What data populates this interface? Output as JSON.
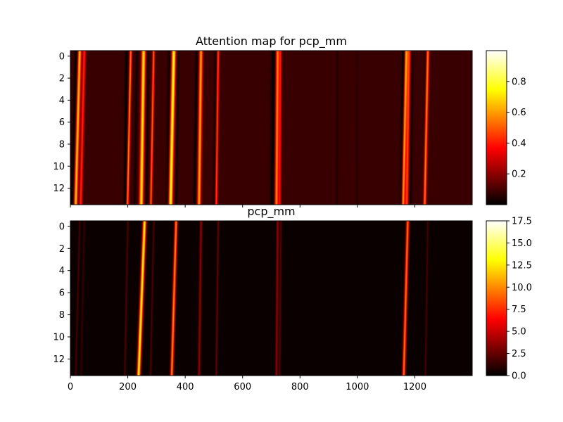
{
  "chart_data": [
    {
      "type": "heatmap",
      "title": "Attention map for pcp_mm",
      "colormap": "hot",
      "x_range": [
        0,
        1400
      ],
      "y_range": [
        -0.5,
        13.5
      ],
      "y_inverted": true,
      "y_ticks": [
        0,
        2,
        4,
        6,
        8,
        10,
        12
      ],
      "x_ticks": [
        0,
        200,
        400,
        600,
        800,
        1000,
        1200
      ],
      "x_tick_labels_visible": false,
      "background_value": 0.08,
      "colorbar": {
        "range": [
          0.0,
          1.0
        ],
        "ticks": [
          0.2,
          0.4,
          0.6,
          0.8
        ]
      },
      "features": [
        {
          "x": 22,
          "slope": 1.2,
          "width": 8,
          "value": -0.08
        },
        {
          "x": 32,
          "slope": 1.0,
          "width": 6,
          "value": 0.6
        },
        {
          "x": 48,
          "slope": 0.9,
          "width": 5,
          "value": 0.35
        },
        {
          "x": 195,
          "slope": 0.4,
          "width": 5,
          "value": -0.08
        },
        {
          "x": 210,
          "slope": 0.8,
          "width": 4,
          "value": 0.5
        },
        {
          "x": 232,
          "slope": 0.6,
          "width": 4,
          "value": -0.06
        },
        {
          "x": 255,
          "slope": 0.6,
          "width": 7,
          "value": 0.65
        },
        {
          "x": 270,
          "slope": 0.4,
          "width": 5,
          "value": -0.06
        },
        {
          "x": 290,
          "slope": 0.7,
          "width": 4,
          "value": 0.45
        },
        {
          "x": 345,
          "slope": 0.5,
          "width": 5,
          "value": -0.07
        },
        {
          "x": 360,
          "slope": 0.8,
          "width": 7,
          "value": 0.7
        },
        {
          "x": 376,
          "slope": 0.5,
          "width": 4,
          "value": -0.06
        },
        {
          "x": 440,
          "slope": 0.6,
          "width": 5,
          "value": -0.07
        },
        {
          "x": 455,
          "slope": 0.5,
          "width": 6,
          "value": 0.55
        },
        {
          "x": 505,
          "slope": 0.3,
          "width": 4,
          "value": -0.06
        },
        {
          "x": 515,
          "slope": 0.5,
          "width": 4,
          "value": 0.4
        },
        {
          "x": 708,
          "slope": 0.3,
          "width": 8,
          "value": -0.08
        },
        {
          "x": 722,
          "slope": 0.3,
          "width": 6,
          "value": 0.5
        },
        {
          "x": 732,
          "slope": 0.2,
          "width": 4,
          "value": 0.3
        },
        {
          "x": 930,
          "slope": 0.1,
          "width": 3,
          "value": -0.04
        },
        {
          "x": 1000,
          "slope": 0.1,
          "width": 3,
          "value": -0.03
        },
        {
          "x": 1160,
          "slope": 0.5,
          "width": 6,
          "value": -0.08
        },
        {
          "x": 1170,
          "slope": 0.8,
          "width": 5,
          "value": 0.55
        },
        {
          "x": 1180,
          "slope": 0.6,
          "width": 6,
          "value": 0.4
        },
        {
          "x": 1188,
          "slope": 0.4,
          "width": 6,
          "value": -0.07
        },
        {
          "x": 1245,
          "slope": 0.8,
          "width": 5,
          "value": 0.5
        },
        {
          "x": 1238,
          "slope": 0.6,
          "width": 4,
          "value": -0.06
        }
      ]
    },
    {
      "type": "heatmap",
      "title": "pcp_mm",
      "colormap": "hot",
      "x_range": [
        0,
        1400
      ],
      "y_range": [
        -0.5,
        13.5
      ],
      "y_inverted": true,
      "y_ticks": [
        0,
        2,
        4,
        6,
        8,
        10,
        12
      ],
      "x_ticks": [
        0,
        200,
        400,
        600,
        800,
        1000,
        1200
      ],
      "x_tick_labels": [
        "0",
        "200",
        "400",
        "600",
        "800",
        "1000",
        "1200"
      ],
      "background_value": 0.25,
      "colorbar": {
        "range": [
          0.0,
          17.5
        ],
        "ticks": [
          0.0,
          2.5,
          5.0,
          7.5,
          10.0,
          12.5,
          15.0,
          17.5
        ],
        "tick_labels": [
          "0.0",
          "2.5",
          "5.0",
          "7.5",
          "10.0",
          "12.5",
          "15.0",
          "17.5"
        ]
      },
      "features": [
        {
          "x": 32,
          "slope": 1.0,
          "width": 3,
          "value": 1.6
        },
        {
          "x": 48,
          "slope": 0.8,
          "width": 3,
          "value": 1.2
        },
        {
          "x": 200,
          "slope": 0.8,
          "width": 3,
          "value": 1.8
        },
        {
          "x": 258,
          "slope": 1.5,
          "width": 6,
          "value": 13.0
        },
        {
          "x": 290,
          "slope": 0.8,
          "width": 3,
          "value": 1.8
        },
        {
          "x": 368,
          "slope": 1.1,
          "width": 5,
          "value": 10.0
        },
        {
          "x": 455,
          "slope": 0.5,
          "width": 4,
          "value": 3.5
        },
        {
          "x": 515,
          "slope": 0.5,
          "width": 3,
          "value": 2.5
        },
        {
          "x": 722,
          "slope": 0.3,
          "width": 4,
          "value": 3.5
        },
        {
          "x": 733,
          "slope": 0.3,
          "width": 3,
          "value": 2.2
        },
        {
          "x": 1175,
          "slope": 1.0,
          "width": 5,
          "value": 9.5
        },
        {
          "x": 1245,
          "slope": 0.6,
          "width": 3,
          "value": 1.6
        }
      ]
    }
  ]
}
